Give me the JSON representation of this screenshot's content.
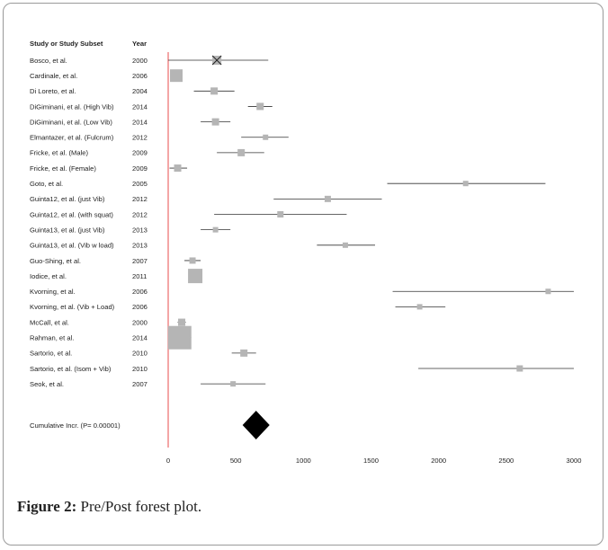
{
  "figure": {
    "caption_label": "Figure 2:",
    "caption_text": "Pre/Post forest plot."
  },
  "chart_data": {
    "type": "forest",
    "header_study": "Study or Study Subset",
    "header_year": "Year",
    "xlim": [
      0,
      3000
    ],
    "xticks": [
      0,
      500,
      1000,
      1500,
      2000,
      2500,
      3000
    ],
    "null_line": 0,
    "studies": [
      {
        "name": "Bosco, et al.",
        "year": "2000",
        "est": 360,
        "lo": -20,
        "hi": 740,
        "weight": 10,
        "marker": "x-box"
      },
      {
        "name": "Cardinale, et al.",
        "year": "2006",
        "est": 60,
        "lo": 20,
        "hi": 100,
        "weight": 14
      },
      {
        "name": "Di Loreto, et al.",
        "year": "2004",
        "est": 340,
        "lo": 190,
        "hi": 490,
        "weight": 8
      },
      {
        "name": "DiGiminani, et al. (High Vib)",
        "year": "2014",
        "est": 680,
        "lo": 590,
        "hi": 770,
        "weight": 8
      },
      {
        "name": "DiGiminani, et al. (Low Vib)",
        "year": "2014",
        "est": 350,
        "lo": 240,
        "hi": 460,
        "weight": 8
      },
      {
        "name": "Elmantazer, et al. (Fulcrum)",
        "year": "2012",
        "est": 720,
        "lo": 540,
        "hi": 890,
        "weight": 6
      },
      {
        "name": "Fricke, et al. (Male)",
        "year": "2009",
        "est": 540,
        "lo": 360,
        "hi": 710,
        "weight": 8
      },
      {
        "name": "Fricke, et al. (Female)",
        "year": "2009",
        "est": 70,
        "lo": 10,
        "hi": 140,
        "weight": 8
      },
      {
        "name": "Goto, et al.",
        "year": "2005",
        "est": 2200,
        "lo": 1620,
        "hi": 2790,
        "weight": 6
      },
      {
        "name": "Guinta12, et al. (just Vib)",
        "year": "2012",
        "est": 1180,
        "lo": 780,
        "hi": 1580,
        "weight": 7
      },
      {
        "name": "Guinta12, et al. (with squat)",
        "year": "2012",
        "est": 830,
        "lo": 340,
        "hi": 1320,
        "weight": 7
      },
      {
        "name": "Guinta13, et al. (just Vib)",
        "year": "2013",
        "est": 350,
        "lo": 240,
        "hi": 460,
        "weight": 6
      },
      {
        "name": "Guinta13, et al. (Vib w load)",
        "year": "2013",
        "est": 1310,
        "lo": 1100,
        "hi": 1530,
        "weight": 6
      },
      {
        "name": "Guo-Shing, et al.",
        "year": "2007",
        "est": 180,
        "lo": 120,
        "hi": 240,
        "weight": 7
      },
      {
        "name": "Iodice, et al.",
        "year": "2011",
        "est": 200,
        "lo": 150,
        "hi": 250,
        "weight": 16
      },
      {
        "name": "Kvorning, et al.",
        "year": "2006",
        "est": 2810,
        "lo": 1660,
        "hi": 3000,
        "weight": 6
      },
      {
        "name": "Kvorning, et al. (Vib + Load)",
        "year": "2006",
        "est": 1860,
        "lo": 1680,
        "hi": 2050,
        "weight": 6
      },
      {
        "name": "McCall, et al.",
        "year": "2000",
        "est": 100,
        "lo": 70,
        "hi": 130,
        "weight": 8
      },
      {
        "name": "Rahman, et al.",
        "year": "2014",
        "est": 85,
        "lo": 0,
        "hi": 170,
        "weight": 26
      },
      {
        "name": "Sartorio, et al.",
        "year": "2010",
        "est": 560,
        "lo": 470,
        "hi": 650,
        "weight": 8
      },
      {
        "name": "Sartorio, et al. (Isom + Vib)",
        "year": "2010",
        "est": 2600,
        "lo": 1850,
        "hi": 3000,
        "weight": 7
      },
      {
        "name": "Seok, et al.",
        "year": "2007",
        "est": 480,
        "lo": 240,
        "hi": 720,
        "weight": 6
      }
    ],
    "overall": {
      "name": "Cumulative Incr. (P= 0.00001)",
      "est": 650,
      "lo": 550,
      "hi": 750
    },
    "colors": {
      "null_line": "#f08080",
      "box": "#b5b5b5",
      "ci_line": "#333333",
      "diamond": "#000000"
    }
  }
}
